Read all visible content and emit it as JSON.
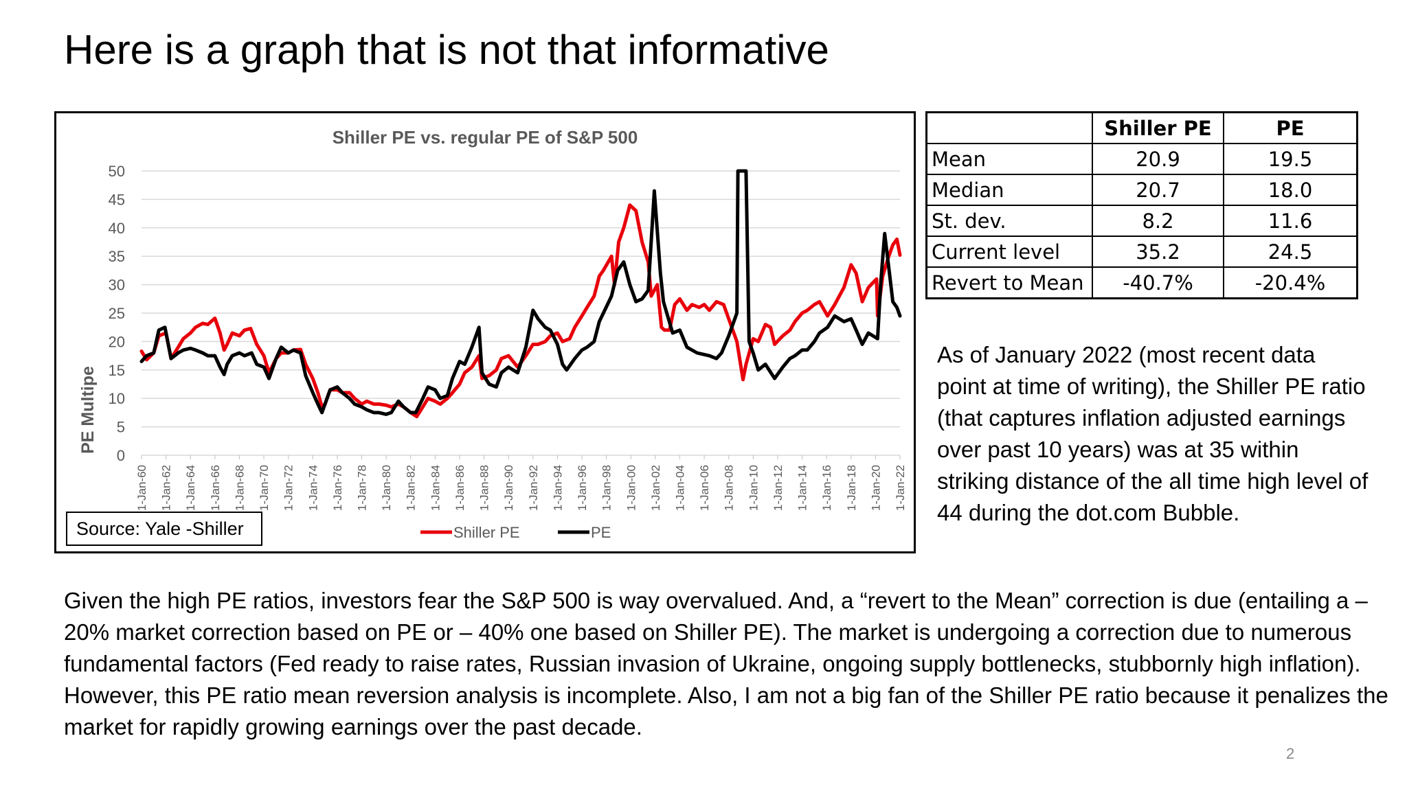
{
  "slide": {
    "title": "Here is a graph that is not that informative",
    "source": "Source: Yale -Shiller",
    "side_note": "As of January 2022 (most recent data point at time of writing), the Shiller PE ratio (that captures inflation adjusted earnings over past 10 years) was at 35 within striking distance of the all time high level of 44 during the dot.com Bubble.",
    "body": "Given the high PE ratios, investors fear the S&P 500 is way overvalued.  And, a “revert to the Mean” correction is due (entailing a – 20% market correction based on PE or – 40% one based on Shiller PE).  The market is undergoing a correction due to numerous fundamental factors (Fed ready to raise rates, Russian invasion of Ukraine, ongoing supply bottlenecks, stubbornly high inflation).  However, this PE ratio mean reversion analysis is incomplete.  Also, I am not a big fan of the Shiller PE ratio because it penalizes the market for rapidly growing earnings over the past decade.",
    "page_number": "2"
  },
  "table": {
    "headers": [
      "",
      "Shiller PE",
      "PE"
    ],
    "rows": [
      {
        "label": "Mean",
        "shiller": "20.9",
        "pe": "19.5"
      },
      {
        "label": "Median",
        "shiller": "20.7",
        "pe": "18.0"
      },
      {
        "label": "St. dev.",
        "shiller": "8.2",
        "pe": "11.6"
      },
      {
        "label": "Current level",
        "shiller": "35.2",
        "pe": "24.5"
      },
      {
        "label": "Revert to Mean",
        "shiller": "-40.7%",
        "pe": "-20.4%"
      }
    ]
  },
  "chart_data": {
    "type": "line",
    "title": "Shiller PE vs. regular PE of S&P 500",
    "xlabel": "",
    "ylabel": "PE Multipe",
    "ylim": [
      0,
      50
    ],
    "yticks": [
      0,
      5,
      10,
      15,
      20,
      25,
      30,
      35,
      40,
      45,
      50
    ],
    "xlim": [
      "1960-01",
      "2022-01"
    ],
    "xticks": [
      "1-Jan-60",
      "1-Jan-62",
      "1-Jan-64",
      "1-Jan-66",
      "1-Jan-68",
      "1-Jan-70",
      "1-Jan-72",
      "1-Jan-74",
      "1-Jan-76",
      "1-Jan-78",
      "1-Jan-80",
      "1-Jan-82",
      "1-Jan-84",
      "1-Jan-86",
      "1-Jan-88",
      "1-Jan-90",
      "1-Jan-92",
      "1-Jan-94",
      "1-Jan-96",
      "1-Jan-98",
      "1-Jan-00",
      "1-Jan-02",
      "1-Jan-04",
      "1-Jan-06",
      "1-Jan-08",
      "1-Jan-10",
      "1-Jan-12",
      "1-Jan-14",
      "1-Jan-16",
      "1-Jan-18",
      "1-Jan-20",
      "1-Jan-22"
    ],
    "grid": true,
    "legend": "bottom-center",
    "series": [
      {
        "name": "Shiller PE",
        "color": "#e8000b",
        "points": [
          [
            "1960-01",
            18.3
          ],
          [
            "1960-06",
            16.8
          ],
          [
            "1961-01",
            18.0
          ],
          [
            "1961-06",
            21.0
          ],
          [
            "1962-01",
            21.5
          ],
          [
            "1962-06",
            17.0
          ],
          [
            "1963-01",
            19.0
          ],
          [
            "1963-06",
            20.5
          ],
          [
            "1964-01",
            21.5
          ],
          [
            "1964-06",
            22.5
          ],
          [
            "1965-01",
            23.2
          ],
          [
            "1965-06",
            23.0
          ],
          [
            "1966-01",
            24.1
          ],
          [
            "1966-06",
            21.5
          ],
          [
            "1966-10",
            18.5
          ],
          [
            "1967-01",
            19.5
          ],
          [
            "1967-06",
            21.5
          ],
          [
            "1968-01",
            21.0
          ],
          [
            "1968-06",
            22.0
          ],
          [
            "1968-12",
            22.3
          ],
          [
            "1969-06",
            19.5
          ],
          [
            "1970-01",
            17.5
          ],
          [
            "1970-06",
            14.5
          ],
          [
            "1971-01",
            17.0
          ],
          [
            "1971-06",
            18.0
          ],
          [
            "1972-01",
            18.0
          ],
          [
            "1972-06",
            18.5
          ],
          [
            "1973-01",
            18.6
          ],
          [
            "1973-06",
            16.0
          ],
          [
            "1974-01",
            13.5
          ],
          [
            "1974-06",
            11.0
          ],
          [
            "1974-10",
            8.5
          ],
          [
            "1975-01",
            9.0
          ],
          [
            "1975-06",
            11.5
          ],
          [
            "1976-01",
            11.5
          ],
          [
            "1976-06",
            11.0
          ],
          [
            "1977-01",
            11.0
          ],
          [
            "1977-06",
            10.0
          ],
          [
            "1978-01",
            9.0
          ],
          [
            "1978-06",
            9.5
          ],
          [
            "1979-01",
            9.0
          ],
          [
            "1979-06",
            9.0
          ],
          [
            "1980-01",
            8.8
          ],
          [
            "1980-06",
            8.5
          ],
          [
            "1981-01",
            9.0
          ],
          [
            "1981-06",
            8.5
          ],
          [
            "1982-01",
            7.5
          ],
          [
            "1982-07",
            6.8
          ],
          [
            "1983-01",
            8.5
          ],
          [
            "1983-06",
            10.0
          ],
          [
            "1984-01",
            9.5
          ],
          [
            "1984-06",
            9.0
          ],
          [
            "1985-01",
            10.0
          ],
          [
            "1985-06",
            11.0
          ],
          [
            "1986-01",
            12.5
          ],
          [
            "1986-06",
            14.5
          ],
          [
            "1987-01",
            15.5
          ],
          [
            "1987-08",
            17.5
          ],
          [
            "1987-11",
            13.5
          ],
          [
            "1988-06",
            14.0
          ],
          [
            "1989-01",
            15.0
          ],
          [
            "1989-06",
            17.0
          ],
          [
            "1990-01",
            17.5
          ],
          [
            "1990-10",
            15.5
          ],
          [
            "1991-06",
            17.5
          ],
          [
            "1992-01",
            19.5
          ],
          [
            "1992-06",
            19.5
          ],
          [
            "1993-01",
            20.0
          ],
          [
            "1993-06",
            21.0
          ],
          [
            "1994-01",
            21.5
          ],
          [
            "1994-06",
            20.0
          ],
          [
            "1995-01",
            20.5
          ],
          [
            "1995-06",
            22.5
          ],
          [
            "1996-01",
            24.5
          ],
          [
            "1996-06",
            26.0
          ],
          [
            "1997-01",
            28.0
          ],
          [
            "1997-06",
            31.5
          ],
          [
            "1997-10",
            32.5
          ],
          [
            "1998-06",
            35.0
          ],
          [
            "1998-09",
            30.0
          ],
          [
            "1999-01",
            37.5
          ],
          [
            "1999-06",
            40.0
          ],
          [
            "1999-12",
            44.0
          ],
          [
            "2000-06",
            43.0
          ],
          [
            "2000-12",
            37.5
          ],
          [
            "2001-06",
            34.0
          ],
          [
            "2001-09",
            28.0
          ],
          [
            "2002-03",
            30.0
          ],
          [
            "2002-07",
            22.5
          ],
          [
            "2002-10",
            22.0
          ],
          [
            "2003-03",
            22.0
          ],
          [
            "2003-08",
            26.5
          ],
          [
            "2004-01",
            27.5
          ],
          [
            "2004-08",
            25.5
          ],
          [
            "2005-01",
            26.5
          ],
          [
            "2005-08",
            26.0
          ],
          [
            "2006-01",
            26.5
          ],
          [
            "2006-06",
            25.5
          ],
          [
            "2007-01",
            27.0
          ],
          [
            "2007-08",
            26.5
          ],
          [
            "2008-01",
            24.0
          ],
          [
            "2008-09",
            20.0
          ],
          [
            "2009-03",
            13.3
          ],
          [
            "2009-06",
            16.0
          ],
          [
            "2010-01",
            20.5
          ],
          [
            "2010-06",
            20.0
          ],
          [
            "2011-01",
            23.0
          ],
          [
            "2011-06",
            22.5
          ],
          [
            "2011-10",
            19.5
          ],
          [
            "2012-06",
            21.0
          ],
          [
            "2013-01",
            22.0
          ],
          [
            "2013-06",
            23.5
          ],
          [
            "2014-01",
            25.0
          ],
          [
            "2014-06",
            25.5
          ],
          [
            "2015-01",
            26.5
          ],
          [
            "2015-06",
            27.0
          ],
          [
            "2016-02",
            24.5
          ],
          [
            "2016-09",
            26.5
          ],
          [
            "2017-06",
            29.5
          ],
          [
            "2018-01",
            33.5
          ],
          [
            "2018-06",
            32.0
          ],
          [
            "2018-12",
            27.0
          ],
          [
            "2019-06",
            29.5
          ],
          [
            "2020-02",
            31.0
          ],
          [
            "2020-03",
            24.5
          ],
          [
            "2020-08",
            31.5
          ],
          [
            "2021-01",
            34.5
          ],
          [
            "2021-06",
            37.0
          ],
          [
            "2021-10",
            38.0
          ],
          [
            "2022-01",
            35.2
          ]
        ]
      },
      {
        "name": "PE",
        "color": "#000000",
        "points": [
          [
            "1960-01",
            16.5
          ],
          [
            "1960-06",
            17.5
          ],
          [
            "1961-01",
            18.0
          ],
          [
            "1961-06",
            22.0
          ],
          [
            "1961-12",
            22.5
          ],
          [
            "1962-06",
            17.0
          ],
          [
            "1963-01",
            18.0
          ],
          [
            "1963-06",
            18.5
          ],
          [
            "1964-01",
            18.8
          ],
          [
            "1964-06",
            18.5
          ],
          [
            "1965-01",
            18.0
          ],
          [
            "1965-06",
            17.5
          ],
          [
            "1966-01",
            17.5
          ],
          [
            "1966-06",
            15.5
          ],
          [
            "1966-10",
            14.2
          ],
          [
            "1967-01",
            16.0
          ],
          [
            "1967-06",
            17.5
          ],
          [
            "1968-01",
            18.0
          ],
          [
            "1968-06",
            17.5
          ],
          [
            "1969-01",
            18.0
          ],
          [
            "1969-06",
            16.0
          ],
          [
            "1970-01",
            15.5
          ],
          [
            "1970-06",
            13.5
          ],
          [
            "1971-01",
            17.0
          ],
          [
            "1971-06",
            19.0
          ],
          [
            "1972-01",
            18.0
          ],
          [
            "1972-06",
            18.5
          ],
          [
            "1973-01",
            18.0
          ],
          [
            "1973-06",
            14.0
          ],
          [
            "1974-01",
            11.0
          ],
          [
            "1974-06",
            9.0
          ],
          [
            "1974-10",
            7.5
          ],
          [
            "1975-06",
            11.5
          ],
          [
            "1976-01",
            12.0
          ],
          [
            "1976-06",
            11.0
          ],
          [
            "1977-01",
            10.0
          ],
          [
            "1977-06",
            9.0
          ],
          [
            "1978-01",
            8.5
          ],
          [
            "1978-06",
            8.0
          ],
          [
            "1979-01",
            7.5
          ],
          [
            "1979-06",
            7.5
          ],
          [
            "1980-01",
            7.2
          ],
          [
            "1980-06",
            7.5
          ],
          [
            "1981-01",
            9.5
          ],
          [
            "1981-06",
            8.5
          ],
          [
            "1982-01",
            7.5
          ],
          [
            "1982-06",
            7.5
          ],
          [
            "1983-01",
            10.0
          ],
          [
            "1983-06",
            12.0
          ],
          [
            "1984-01",
            11.5
          ],
          [
            "1984-06",
            10.0
          ],
          [
            "1985-01",
            10.5
          ],
          [
            "1985-06",
            13.5
          ],
          [
            "1986-01",
            16.5
          ],
          [
            "1986-06",
            16.0
          ],
          [
            "1987-01",
            19.0
          ],
          [
            "1987-08",
            22.5
          ],
          [
            "1987-11",
            14.5
          ],
          [
            "1988-06",
            12.5
          ],
          [
            "1989-01",
            12.0
          ],
          [
            "1989-06",
            14.5
          ],
          [
            "1990-01",
            15.5
          ],
          [
            "1990-10",
            14.5
          ],
          [
            "1991-06",
            19.0
          ],
          [
            "1992-01",
            25.5
          ],
          [
            "1992-06",
            24.0
          ],
          [
            "1993-01",
            22.5
          ],
          [
            "1993-06",
            22.0
          ],
          [
            "1994-01",
            19.5
          ],
          [
            "1994-06",
            16.0
          ],
          [
            "1994-10",
            15.0
          ],
          [
            "1995-06",
            17.0
          ],
          [
            "1996-01",
            18.5
          ],
          [
            "1996-06",
            19.0
          ],
          [
            "1997-01",
            20.0
          ],
          [
            "1997-06",
            23.5
          ],
          [
            "1998-06",
            28.0
          ],
          [
            "1998-12",
            32.5
          ],
          [
            "1999-06",
            34.0
          ],
          [
            "1999-12",
            30.0
          ],
          [
            "2000-06",
            27.0
          ],
          [
            "2000-12",
            27.5
          ],
          [
            "2001-06",
            29.0
          ],
          [
            "2001-12",
            46.5
          ],
          [
            "2002-06",
            32.0
          ],
          [
            "2002-09",
            27.0
          ],
          [
            "2003-06",
            21.5
          ],
          [
            "2004-01",
            22.0
          ],
          [
            "2004-08",
            19.0
          ],
          [
            "2005-06",
            18.0
          ],
          [
            "2006-06",
            17.5
          ],
          [
            "2007-01",
            17.0
          ],
          [
            "2007-06",
            18.0
          ],
          [
            "2008-01",
            21.0
          ],
          [
            "2008-09",
            25.0
          ],
          [
            "2008-10",
            50.0
          ],
          [
            "2009-06",
            50.0
          ],
          [
            "2009-09",
            20.0
          ],
          [
            "2010-01",
            18.0
          ],
          [
            "2010-06",
            15.0
          ],
          [
            "2011-01",
            16.0
          ],
          [
            "2011-10",
            13.5
          ],
          [
            "2012-06",
            15.5
          ],
          [
            "2013-01",
            17.0
          ],
          [
            "2013-06",
            17.5
          ],
          [
            "2014-01",
            18.5
          ],
          [
            "2014-06",
            18.5
          ],
          [
            "2015-01",
            20.0
          ],
          [
            "2015-06",
            21.5
          ],
          [
            "2016-02",
            22.5
          ],
          [
            "2016-09",
            24.5
          ],
          [
            "2017-06",
            23.5
          ],
          [
            "2018-01",
            24.0
          ],
          [
            "2018-06",
            22.0
          ],
          [
            "2018-12",
            19.5
          ],
          [
            "2019-06",
            21.5
          ],
          [
            "2020-03",
            20.5
          ],
          [
            "2020-06",
            30.0
          ],
          [
            "2020-10",
            39.0
          ],
          [
            "2021-02",
            33.0
          ],
          [
            "2021-06",
            27.0
          ],
          [
            "2021-10",
            26.0
          ],
          [
            "2022-01",
            24.5
          ]
        ]
      }
    ]
  }
}
